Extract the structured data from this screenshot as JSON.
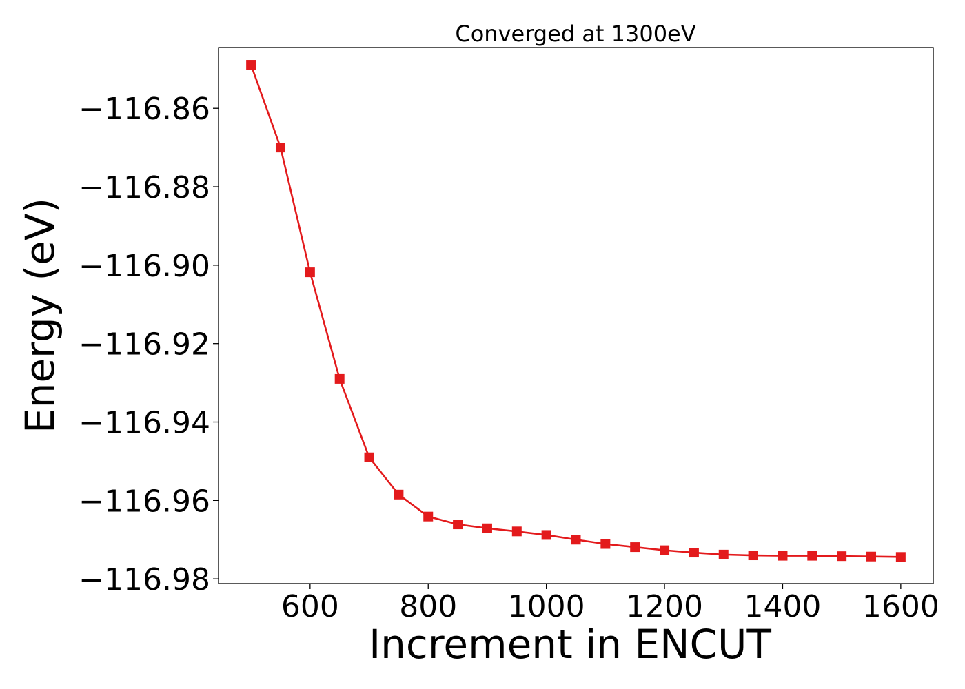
{
  "chart_data": {
    "type": "line",
    "title": "Converged at 1300eV",
    "xlabel": "Increment in ENCUT",
    "ylabel": "Energy (eV)",
    "xlim": [
      445,
      1655
    ],
    "ylim": [
      -116.9812,
      -116.8445
    ],
    "xticks": [
      600,
      800,
      1000,
      1200,
      1400,
      1600
    ],
    "xtick_labels": [
      "600",
      "800",
      "1000",
      "1200",
      "1400",
      "1600"
    ],
    "yticks": [
      -116.86,
      -116.88,
      -116.9,
      -116.92,
      -116.94,
      -116.96,
      -116.98
    ],
    "ytick_labels": [
      "−116.86",
      "−116.88",
      "−116.90",
      "−116.92",
      "−116.94",
      "−116.96",
      "−116.98"
    ],
    "grid": false,
    "series": [
      {
        "color": "#e31a1c",
        "marker": "square",
        "x": [
          500,
          550,
          600,
          650,
          700,
          750,
          800,
          850,
          900,
          950,
          1000,
          1050,
          1100,
          1150,
          1200,
          1250,
          1300,
          1350,
          1400,
          1450,
          1500,
          1550,
          1600
        ],
        "y": [
          -116.8489,
          -116.87,
          -116.9018,
          -116.929,
          -116.949,
          -116.9585,
          -116.9641,
          -116.9661,
          -116.9671,
          -116.9679,
          -116.9688,
          -116.97,
          -116.9711,
          -116.9719,
          -116.9727,
          -116.9733,
          -116.9738,
          -116.974,
          -116.9741,
          -116.9741,
          -116.9742,
          -116.9743,
          -116.9744
        ]
      }
    ]
  }
}
